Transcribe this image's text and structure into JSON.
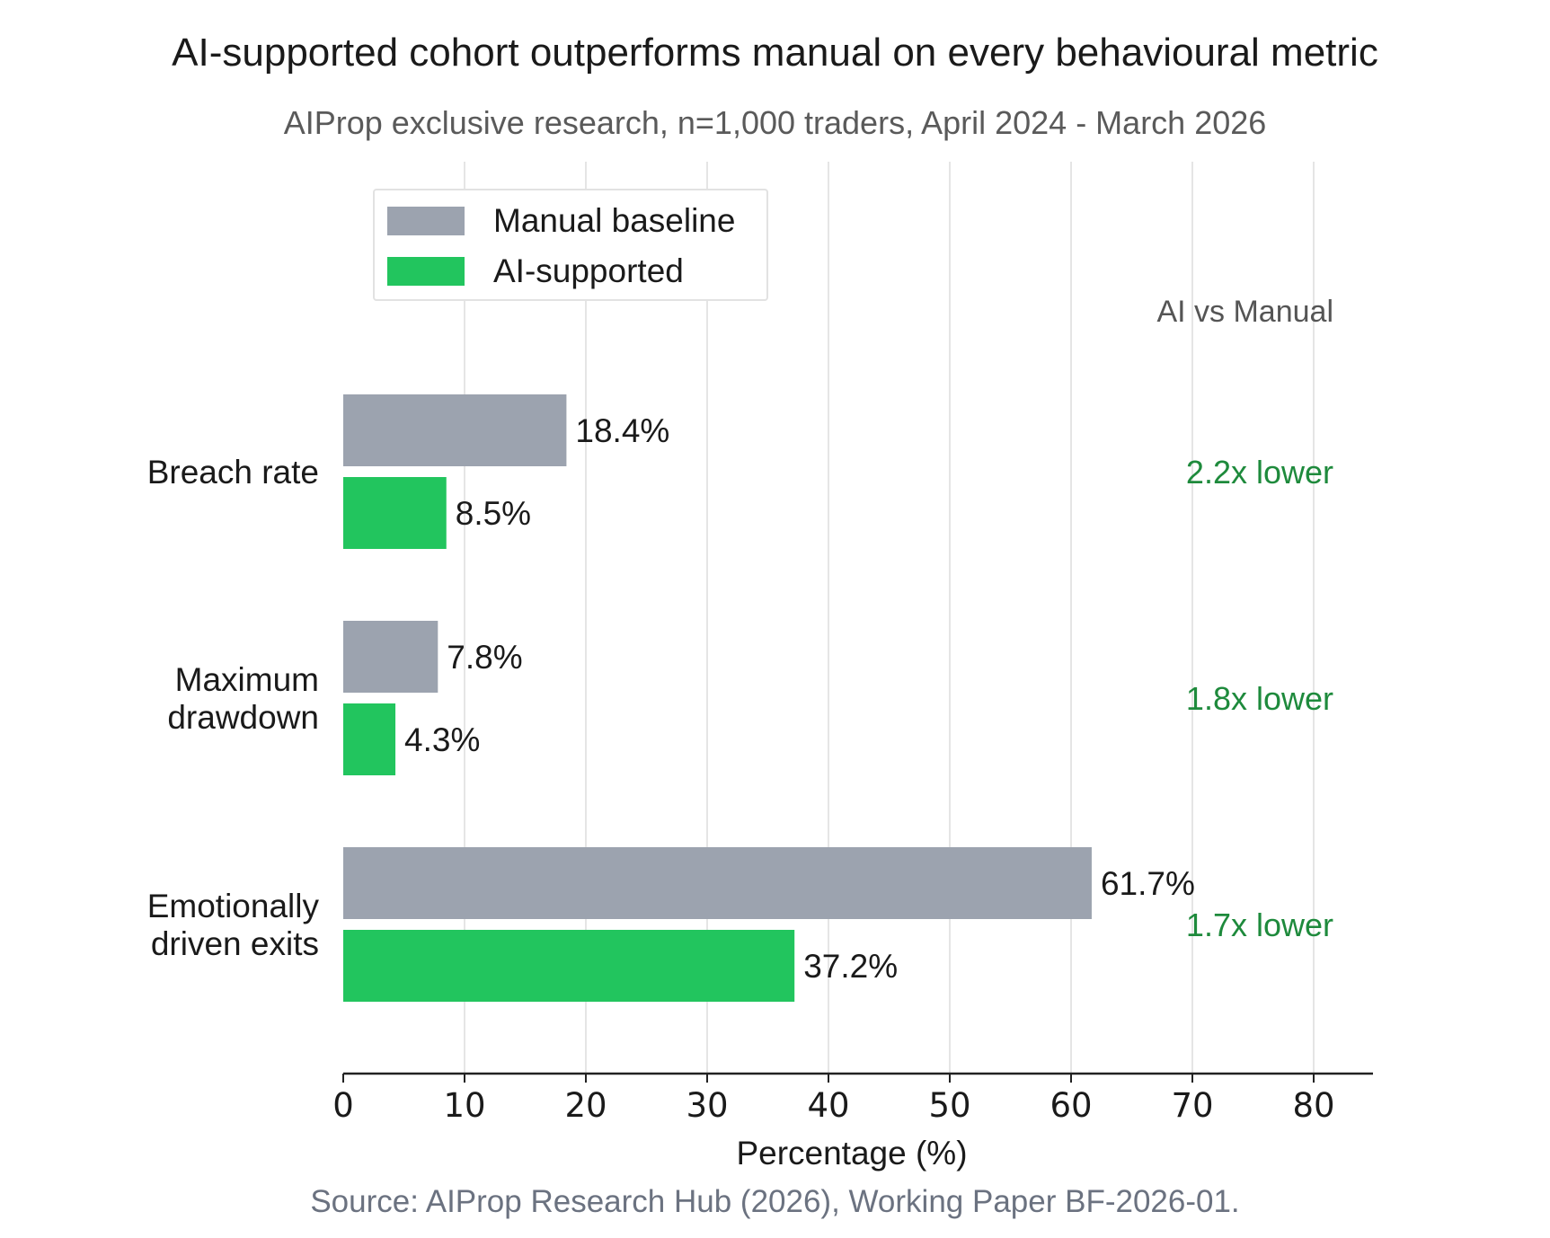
{
  "title": "AI-supported cohort outperforms manual on every behavioural metric",
  "subtitle": "AIProp exclusive research, n=1,000 traders, April 2024 - March 2026",
  "source": "Source: AIProp Research Hub (2026), Working Paper BF-2026-01.",
  "colors": {
    "manual": "#9ca3af",
    "ai": "#22c55e",
    "ratio_text": "#1e8a3c",
    "grid": "#e5e5e5",
    "axis": "#222222",
    "text": "#1a1a1a"
  },
  "chart_data": {
    "type": "bar",
    "orientation": "horizontal",
    "categories": [
      "Breach rate",
      "Maximum\ndrawdown",
      "Emotionally\ndriven exits"
    ],
    "series": [
      {
        "name": "Manual baseline",
        "values": [
          18.4,
          7.8,
          61.7
        ],
        "labels": [
          "18.4%",
          "7.8%",
          "61.7%"
        ]
      },
      {
        "name": "AI-supported",
        "values": [
          8.5,
          4.3,
          37.2
        ],
        "labels": [
          "8.5%",
          "4.3%",
          "37.2%"
        ]
      }
    ],
    "xlabel": "Percentage (%)",
    "ylabel": "",
    "xlim": [
      0,
      85
    ],
    "xticks": [
      0,
      10,
      20,
      30,
      40,
      50,
      60,
      70,
      80
    ],
    "grid": "vertical",
    "legend_position": "top-left",
    "annotation_header": "AI vs Manual",
    "annotations": [
      "2.2x lower",
      "1.8x lower",
      "1.7x lower"
    ]
  }
}
